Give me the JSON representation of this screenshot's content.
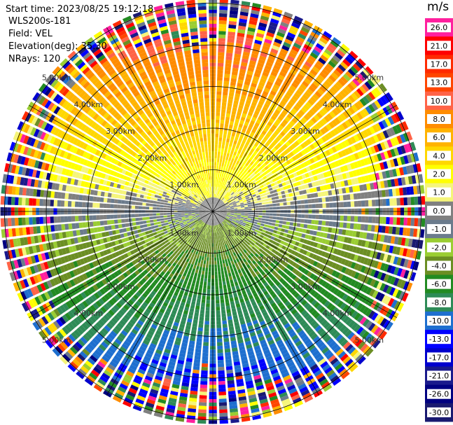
{
  "meta": {
    "start_time": "Start time: 2023/08/25 19:12:18",
    "instrument": "WLS200s-181",
    "field": "Field: VEL",
    "elevation": "Elevation(deg): 35.30",
    "nrays": "NRays: 120"
  },
  "chart_data": {
    "type": "heatmap",
    "projection": "polar",
    "rays": 120,
    "range_rings": [
      "1.00km",
      "2.00km",
      "3.00km",
      "4.00km",
      "5.00km"
    ],
    "max_range_km": 5.1,
    "colorbar": {
      "unit": "m/s",
      "ticks": [
        "26.0",
        "21.0",
        "17.0",
        "13.0",
        "10.0",
        "8.0",
        "6.0",
        "4.0",
        "2.0",
        "1.0",
        "0.0",
        "-1.0",
        "-2.0",
        "-4.0",
        "-6.0",
        "-8.0",
        "-10.0",
        "-13.0",
        "-17.0",
        "-21.0",
        "-26.0",
        "-30.0"
      ],
      "colors": [
        "#ff1f9e",
        "#ff0000",
        "#ff2a00",
        "#ff4500",
        "#ff6347",
        "#ff8c00",
        "#ffb300",
        "#ffd700",
        "#ffff00",
        "#f5f57a",
        "#808080",
        "#6b7b8c",
        "#9acd32",
        "#6b8e23",
        "#228b22",
        "#2e8b57",
        "#1e6fcf",
        "#0000ff",
        "#0000cd",
        "#1a1a8c",
        "#000080",
        "#191970"
      ]
    },
    "pattern": "radial wind velocity; positive (warm) toward north, negative (cool) toward south, noisy multicolor outer gates"
  }
}
